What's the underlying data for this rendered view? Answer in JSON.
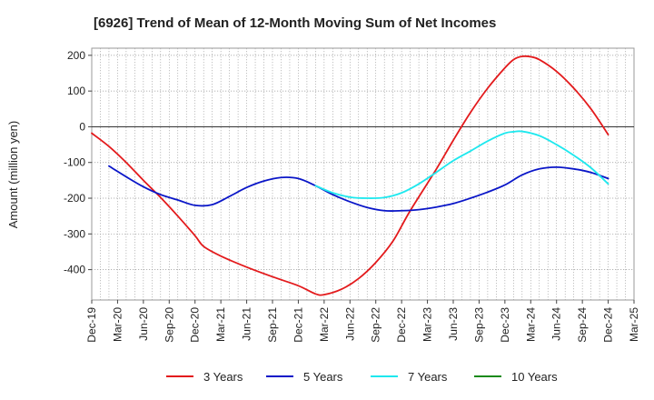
{
  "chart_data": {
    "type": "line",
    "title": "[6926]  Trend of Mean of 12-Month Moving Sum of Net Incomes",
    "ylabel": "Amount (million yen)",
    "xlabel": "",
    "ylim": [
      -485,
      220
    ],
    "yticks": [
      200,
      100,
      0,
      -100,
      -200,
      -300,
      -400
    ],
    "xlim": [
      "2019-12",
      "2025-03"
    ],
    "xticks": [
      "Dec-19",
      "Mar-20",
      "Jun-20",
      "Sep-20",
      "Dec-20",
      "Mar-21",
      "Jun-21",
      "Sep-21",
      "Dec-21",
      "Mar-22",
      "Jun-22",
      "Sep-22",
      "Dec-22",
      "Mar-23",
      "Jun-23",
      "Sep-23",
      "Dec-23",
      "Mar-24",
      "Jun-24",
      "Sep-24",
      "Dec-24",
      "Mar-25"
    ],
    "grid": true,
    "legend_position": "bottom",
    "series": [
      {
        "name": "3 Years",
        "color": "#e31a1c",
        "points": [
          [
            "2019-12",
            -18
          ],
          [
            "2020-02",
            -55
          ],
          [
            "2020-04",
            -100
          ],
          [
            "2020-06",
            -150
          ],
          [
            "2020-08",
            -198
          ],
          [
            "2020-10",
            -250
          ],
          [
            "2020-12",
            -305
          ],
          [
            "2021-01",
            -335
          ],
          [
            "2021-03",
            -362
          ],
          [
            "2021-06",
            -393
          ],
          [
            "2021-09",
            -420
          ],
          [
            "2021-12",
            -445
          ],
          [
            "2022-02",
            -468
          ],
          [
            "2022-03",
            -470
          ],
          [
            "2022-05",
            -455
          ],
          [
            "2022-07",
            -425
          ],
          [
            "2022-09",
            -380
          ],
          [
            "2022-11",
            -320
          ],
          [
            "2023-01",
            -235
          ],
          [
            "2023-04",
            -120
          ],
          [
            "2023-06",
            -38
          ],
          [
            "2023-08",
            40
          ],
          [
            "2023-10",
            108
          ],
          [
            "2023-12",
            165
          ],
          [
            "2024-01",
            188
          ],
          [
            "2024-02",
            197
          ],
          [
            "2024-03",
            196
          ],
          [
            "2024-04",
            188
          ],
          [
            "2024-06",
            155
          ],
          [
            "2024-08",
            108
          ],
          [
            "2024-10",
            50
          ],
          [
            "2024-12",
            -22
          ]
        ]
      },
      {
        "name": "5 Years",
        "color": "#0a16c8",
        "points": [
          [
            "2020-02",
            -110
          ],
          [
            "2020-04",
            -140
          ],
          [
            "2020-06",
            -168
          ],
          [
            "2020-08",
            -190
          ],
          [
            "2020-10",
            -205
          ],
          [
            "2020-12",
            -220
          ],
          [
            "2021-02",
            -218
          ],
          [
            "2021-04",
            -195
          ],
          [
            "2021-06",
            -170
          ],
          [
            "2021-08",
            -152
          ],
          [
            "2021-10",
            -142
          ],
          [
            "2021-12",
            -145
          ],
          [
            "2022-02",
            -165
          ],
          [
            "2022-04",
            -190
          ],
          [
            "2022-06",
            -210
          ],
          [
            "2022-08",
            -226
          ],
          [
            "2022-10",
            -235
          ],
          [
            "2022-12",
            -235
          ],
          [
            "2023-02",
            -232
          ],
          [
            "2023-04",
            -225
          ],
          [
            "2023-06",
            -215
          ],
          [
            "2023-08",
            -200
          ],
          [
            "2023-10",
            -183
          ],
          [
            "2023-12",
            -163
          ],
          [
            "2024-02",
            -135
          ],
          [
            "2024-04",
            -118
          ],
          [
            "2024-06",
            -113
          ],
          [
            "2024-08",
            -118
          ],
          [
            "2024-10",
            -128
          ],
          [
            "2024-12",
            -145
          ]
        ]
      },
      {
        "name": "7 Years",
        "color": "#1ee8ee",
        "points": [
          [
            "2022-02",
            -165
          ],
          [
            "2022-04",
            -185
          ],
          [
            "2022-06",
            -197
          ],
          [
            "2022-08",
            -200
          ],
          [
            "2022-10",
            -198
          ],
          [
            "2022-12",
            -185
          ],
          [
            "2023-02",
            -160
          ],
          [
            "2023-04",
            -128
          ],
          [
            "2023-06",
            -95
          ],
          [
            "2023-08",
            -68
          ],
          [
            "2023-10",
            -40
          ],
          [
            "2023-12",
            -18
          ],
          [
            "2024-01",
            -14
          ],
          [
            "2024-02",
            -13
          ],
          [
            "2024-04",
            -25
          ],
          [
            "2024-06",
            -50
          ],
          [
            "2024-08",
            -80
          ],
          [
            "2024-10",
            -115
          ],
          [
            "2024-12",
            -160
          ]
        ]
      },
      {
        "name": "10 Years",
        "color": "#1a8a1a",
        "points": []
      }
    ]
  }
}
